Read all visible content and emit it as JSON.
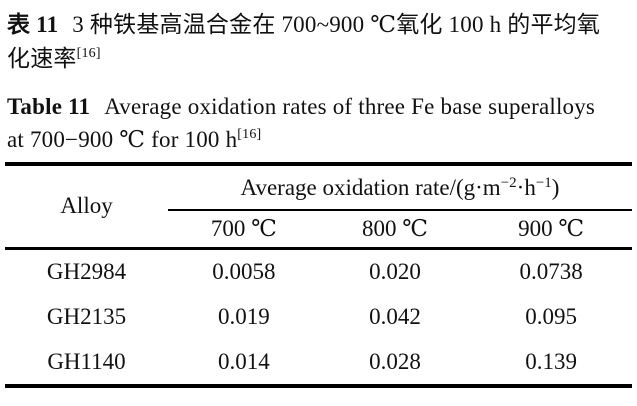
{
  "caption_zh": {
    "label": "表 11",
    "line1_rest": "3 种铁基高温合金在 700~900 ℃氧化 100 h 的平均氧",
    "line2_text": "化速率",
    "line2_ref": "[16]"
  },
  "caption_en": {
    "label": "Table 11",
    "line1_rest": "Average oxidation rates of three Fe base superalloys",
    "line2_text": "at 700−900 ℃ for 100 h",
    "line2_ref": "[16]"
  },
  "table": {
    "col1_header": "Alloy",
    "group_header_unit_parts": {
      "p1": "Average oxidation rate/(g·m",
      "s1": "−2",
      "p2": "·h",
      "s2": "−1",
      "p3": ")"
    },
    "sub_headers": [
      "700 ℃",
      "800 ℃",
      "900 ℃"
    ],
    "rows": [
      {
        "alloy": "GH2984",
        "r700": "0.0058",
        "r800": "0.020",
        "r900": "0.0738"
      },
      {
        "alloy": "GH2135",
        "r700": "0.019",
        "r800": "0.042",
        "r900": "0.095"
      },
      {
        "alloy": "GH1140",
        "r700": "0.014",
        "r800": "0.028",
        "r900": "0.139"
      }
    ]
  },
  "colors": {
    "background": "#ffffff",
    "text": "#111111",
    "rule": "#000000"
  }
}
